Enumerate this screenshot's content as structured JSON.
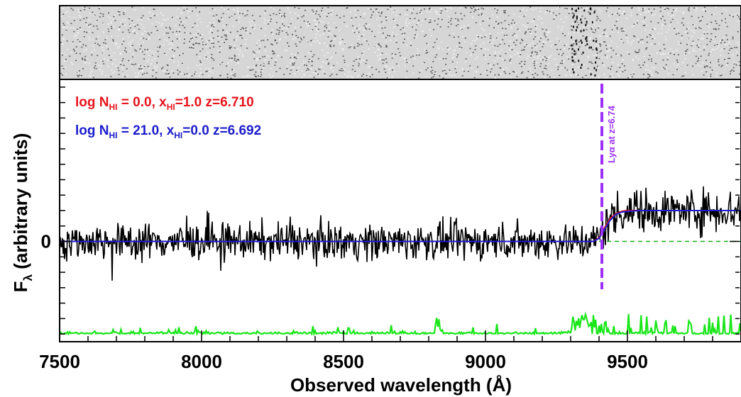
{
  "chart_data": {
    "type": "line",
    "xlabel": "Observed wavelength (Å)",
    "ylabel": "F",
    "ylabel_sub": "λ",
    "ylabel_units": "(arbitrary units)",
    "xlim": [
      7500,
      9900
    ],
    "ylim": [
      -1.3,
      2.1
    ],
    "x_ticks": [
      7500,
      8000,
      8500,
      9000,
      9500
    ],
    "y_ticks": [
      0
    ],
    "grid": false,
    "legend": [
      {
        "text_pre": "log N",
        "sub": "HI",
        "text_mid": " =  0.0, x",
        "sub2": "HI",
        "text_post": "=1.0  z=6.710",
        "color": "#e8141c"
      },
      {
        "text_pre": "log N",
        "sub": "HI",
        "text_mid": " = 21.0, x",
        "sub2": "HI",
        "text_post": "=0.0  z=6.692",
        "color": "#1c1ccc"
      }
    ],
    "legend_position": "top-left",
    "annotation": {
      "text": "Lyα at z=6.74",
      "x": 9410,
      "color": "#9b30ff"
    },
    "series": [
      {
        "name": "log N_HI = 0.0, x_HI=1.0 z=6.710",
        "color": "#e8141c",
        "x": [
          7500,
          9380,
          9400,
          9420,
          9440,
          9460,
          9480,
          9500,
          9550,
          9900
        ],
        "y": [
          0,
          0,
          0.05,
          0.18,
          0.3,
          0.36,
          0.39,
          0.4,
          0.4,
          0.4
        ]
      },
      {
        "name": "log N_HI = 21.0, x_HI=0.0 z=6.692",
        "color": "#1c1ccc",
        "x": [
          7500,
          9380,
          9400,
          9420,
          9440,
          9460,
          9480,
          9500,
          9550,
          9900
        ],
        "y": [
          0,
          0,
          0.04,
          0.16,
          0.28,
          0.35,
          0.38,
          0.39,
          0.4,
          0.4
        ]
      },
      {
        "name": "",
        "type": "noise-spectrum",
        "color": "#000000",
        "x_range": [
          7500,
          9900
        ],
        "note_level_before": 0,
        "note_level_after": 0.4
      },
      {
        "name": "",
        "type": "error-spectrum",
        "color": "#19e619",
        "baseline": -1.15
      },
      {
        "name": "",
        "type": "continuum-dashed",
        "color": "#19b019",
        "x": [
          9400,
          9900
        ],
        "y": [
          0,
          0
        ]
      }
    ],
    "spectrum_2d": true
  }
}
